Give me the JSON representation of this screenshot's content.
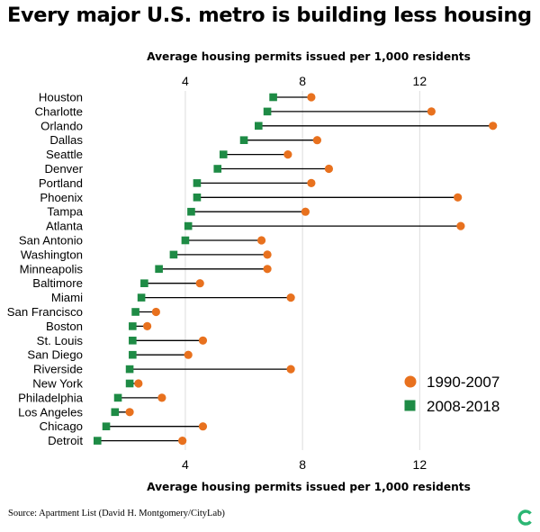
{
  "title": "Every major U.S. metro is building less housing",
  "source": "Source: Apartment List (David H. Montgomery/CityLab)",
  "logo_text": "C",
  "colors": {
    "old": "#e8711e",
    "new": "#1e8b45",
    "line": "#000000",
    "grid": "#dcdcdc"
  },
  "chart_data": {
    "type": "dumbbell",
    "title": "Every major U.S. metro is building less housing",
    "xlabel": "Average housing permits issued per 1,000 residents",
    "xlim": [
      0.5,
      15
    ],
    "xticks": [
      4,
      8,
      12
    ],
    "grid": true,
    "legend_position": "bottom-right",
    "series": [
      {
        "name": "1990-2007",
        "marker": "circle"
      },
      {
        "name": "2008-2018",
        "marker": "square"
      }
    ],
    "categories": [
      "Houston",
      "Charlotte",
      "Orlando",
      "Dallas",
      "Seattle",
      "Denver",
      "Portland",
      "Phoenix",
      "Tampa",
      "Atlanta",
      "San Antonio",
      "Washington",
      "Minneapolis",
      "Baltimore",
      "Miami",
      "San Francisco",
      "Boston",
      "St. Louis",
      "San Diego",
      "Riverside",
      "New York",
      "Philadelphia",
      "Los Angeles",
      "Chicago",
      "Detroit"
    ],
    "values_1990_2007": [
      8.3,
      12.4,
      14.5,
      8.5,
      7.5,
      8.9,
      8.3,
      13.3,
      8.1,
      13.4,
      6.6,
      6.8,
      6.8,
      4.5,
      7.6,
      3.0,
      2.7,
      4.6,
      4.1,
      7.6,
      2.4,
      3.2,
      2.1,
      4.6,
      3.9
    ],
    "values_2008_2018": [
      7.0,
      6.8,
      6.5,
      6.0,
      5.3,
      5.1,
      4.4,
      4.4,
      4.2,
      4.1,
      4.0,
      3.6,
      3.1,
      2.6,
      2.5,
      2.3,
      2.2,
      2.2,
      2.2,
      2.1,
      2.1,
      1.7,
      1.6,
      1.3,
      1.0
    ]
  }
}
